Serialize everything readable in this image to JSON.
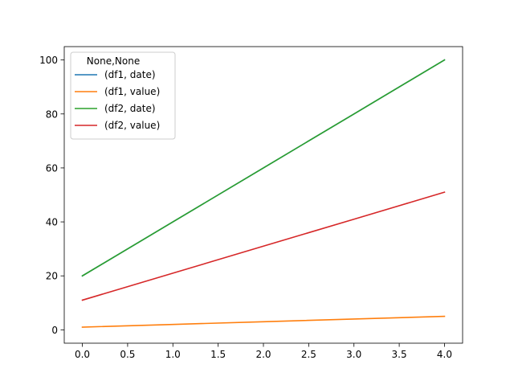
{
  "chart_data": {
    "type": "line",
    "title": "",
    "xlabel": "",
    "ylabel": "",
    "xlim": [
      -0.2,
      4.2
    ],
    "ylim": [
      -4.95,
      104.95
    ],
    "x_ticks": [
      0.0,
      0.5,
      1.0,
      1.5,
      2.0,
      2.5,
      3.0,
      3.5,
      4.0
    ],
    "x_tick_labels": [
      "0.0",
      "0.5",
      "1.0",
      "1.5",
      "2.0",
      "2.5",
      "3.0",
      "3.5",
      "4.0"
    ],
    "y_ticks": [
      0,
      20,
      40,
      60,
      80,
      100
    ],
    "y_tick_labels": [
      "0",
      "20",
      "40",
      "60",
      "80",
      "100"
    ],
    "grid": false,
    "legend": {
      "title": "None,None",
      "placement": "upper-left"
    },
    "x": [
      0,
      1,
      2,
      3,
      4
    ],
    "series": [
      {
        "name": "(df1, date)",
        "color": "#1f77b4",
        "values": [
          20,
          40,
          60,
          80,
          100
        ]
      },
      {
        "name": "(df1, value)",
        "color": "#ff7f0e",
        "values": [
          1,
          2,
          3,
          4,
          5
        ]
      },
      {
        "name": "(df2, date)",
        "color": "#2ca02c",
        "values": [
          20,
          40,
          60,
          80,
          100
        ]
      },
      {
        "name": "(df2, value)",
        "color": "#d62728",
        "values": [
          11,
          21,
          31,
          41,
          51
        ]
      }
    ]
  }
}
